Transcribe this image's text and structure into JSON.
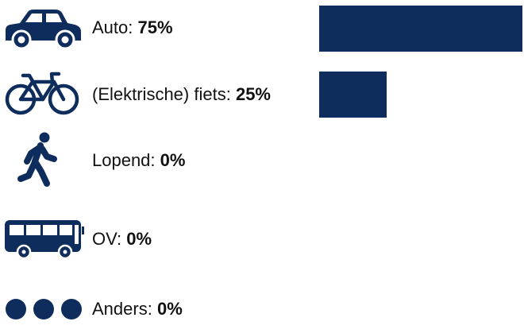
{
  "colors": {
    "accent": "#0f2d5c"
  },
  "chart_data": {
    "type": "bar",
    "orientation": "horizontal",
    "categories": [
      "Auto",
      "(Elektrische) fiets",
      "Lopend",
      "OV",
      "Anders"
    ],
    "values": [
      75,
      25,
      0,
      0,
      0
    ],
    "unit": "%",
    "value_labels": [
      "75%",
      "25%",
      "0%",
      "0%",
      "0%"
    ],
    "icons": [
      "car-icon",
      "bicycle-icon",
      "walking-person-icon",
      "bus-icon",
      "dots-icon"
    ],
    "xlim": [
      0,
      75
    ],
    "grid": false,
    "legend": "none"
  }
}
